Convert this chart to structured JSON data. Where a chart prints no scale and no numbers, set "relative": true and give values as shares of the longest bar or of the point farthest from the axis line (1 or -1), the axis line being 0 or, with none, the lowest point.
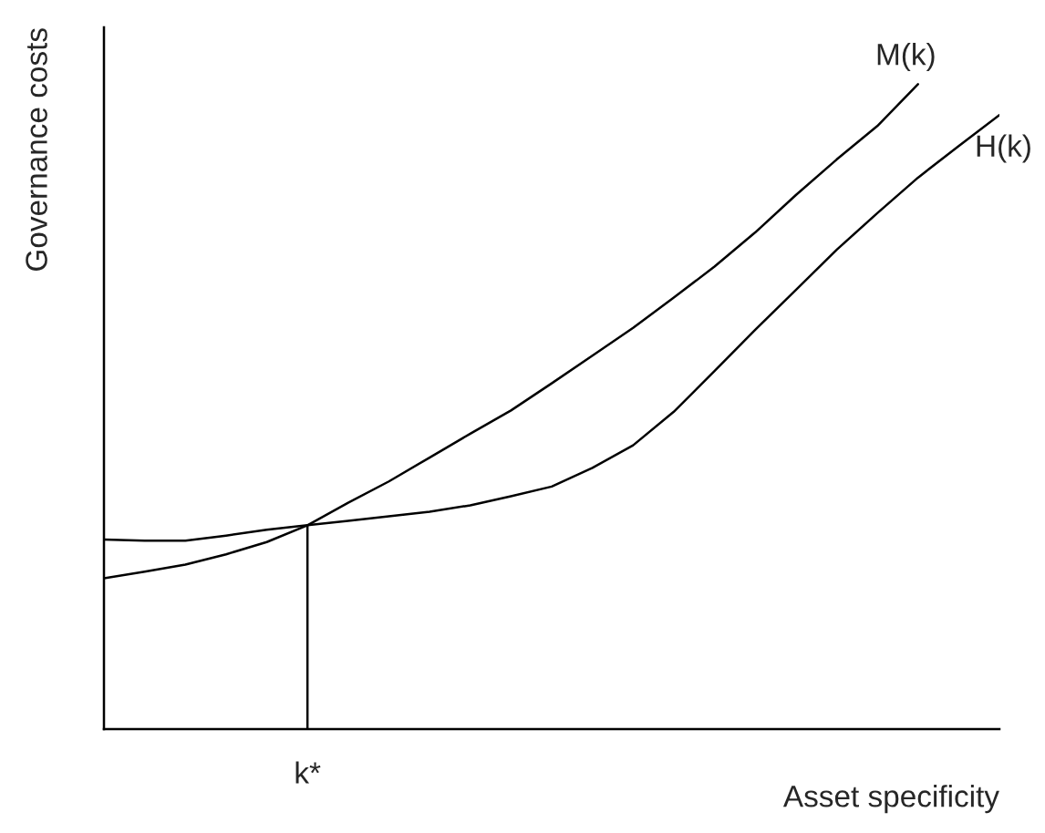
{
  "chart_data": {
    "type": "line",
    "relative": true,
    "xlabel": "Asset specificity",
    "ylabel": "Governance costs",
    "categories": [
      null,
      null,
      null,
      null,
      null,
      null,
      null,
      null,
      null,
      null,
      null,
      null,
      null,
      null,
      null,
      null,
      null,
      null,
      null,
      null,
      null,
      null,
      null
    ],
    "series": [
      {
        "name": "M(k)",
        "color": "#000000",
        "values": [
          0.234,
          0.244,
          0.255,
          0.271,
          0.29,
          0.316,
          0.351,
          0.384,
          0.421,
          0.458,
          0.494,
          0.536,
          0.579,
          0.622,
          0.669,
          0.717,
          0.77,
          0.828,
          0.883,
          0.935,
          1,
          null,
          null
        ]
      },
      {
        "name": "H(k)",
        "color": "#000000",
        "values": [
          0.294,
          0.292,
          0.292,
          0.3,
          0.309,
          0.316,
          0.323,
          0.33,
          0.337,
          0.347,
          0.361,
          0.376,
          0.405,
          0.44,
          0.492,
          0.555,
          0.619,
          0.681,
          0.743,
          0.8,
          0.855,
          0.904,
          0.952
        ]
      }
    ],
    "annotations": [
      "k*"
    ]
  }
}
